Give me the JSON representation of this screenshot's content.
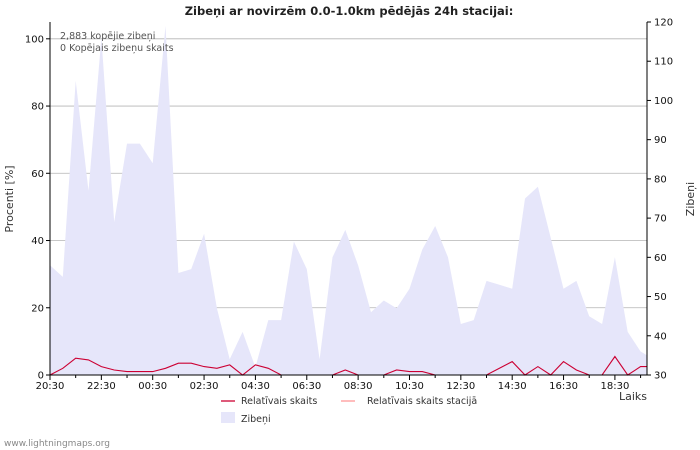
{
  "chart_data": {
    "type": "area",
    "title": "Zibeņi ar novirzēm 0.0-1.0km pēdējās 24h stacijai:",
    "ylabel_left": "Procenti   [%]",
    "ylabel_right": "Zibeņi",
    "xlabel": "Laiks",
    "ylim_left": [
      0,
      105
    ],
    "ylim_right": [
      30,
      120
    ],
    "left_ticks": [
      0,
      20,
      40,
      60,
      80,
      100
    ],
    "right_ticks": [
      30,
      40,
      50,
      60,
      70,
      80,
      90,
      100,
      110,
      120
    ],
    "x_tick_labels": [
      "20:30",
      "22:30",
      "00:30",
      "02:30",
      "04:30",
      "06:30",
      "08:30",
      "10:30",
      "12:30",
      "14:30",
      "16:30",
      "18:30"
    ],
    "x_tick_hours": [
      0,
      2,
      4,
      6,
      8,
      10,
      12,
      14,
      16,
      18,
      20,
      22
    ],
    "x_range_hours": [
      0,
      23.25
    ],
    "annotations": [
      "2,883 kopējie zibeņi",
      "0 Kopējais zibeņu skaits"
    ],
    "series": [
      {
        "name": "Zibeņi",
        "axis": "right",
        "color": "#e6e6fa",
        "x": [
          0,
          0.5,
          1,
          1.5,
          2,
          2.5,
          3,
          3.5,
          4,
          4.5,
          5,
          5.5,
          6,
          6.5,
          7,
          7.5,
          8,
          8.5,
          9,
          9.5,
          10,
          10.5,
          11,
          11.5,
          12,
          12.5,
          13,
          13.5,
          14,
          14.5,
          15,
          15.5,
          16,
          16.5,
          17,
          17.5,
          18,
          18.5,
          19,
          19.5,
          20,
          20.5,
          21,
          21.5,
          22,
          22.5,
          23,
          23.25
        ],
        "values": [
          58,
          55,
          105,
          77,
          116,
          69,
          89,
          89,
          84,
          119,
          56,
          57,
          66,
          47,
          34,
          41,
          32,
          44,
          44,
          64,
          57,
          34,
          60,
          67,
          58,
          46,
          49,
          47,
          52,
          62,
          68,
          60,
          43,
          44,
          54,
          53,
          52,
          75,
          78,
          65,
          52,
          54,
          45,
          43,
          60,
          41,
          36,
          35
        ]
      },
      {
        "name": "Relatīvais skaits",
        "axis": "left",
        "color": "#cc0033",
        "x": [
          0,
          0.5,
          1,
          1.5,
          2,
          2.5,
          3,
          3.5,
          4,
          4.5,
          5,
          5.5,
          6,
          6.5,
          7,
          7.5,
          8,
          8.5,
          9,
          9.5,
          10,
          10.5,
          11,
          11.5,
          12,
          12.5,
          13,
          13.5,
          14,
          14.5,
          15,
          15.5,
          16,
          16.5,
          17,
          17.5,
          18,
          18.5,
          19,
          19.5,
          20,
          20.5,
          21,
          21.5,
          22,
          22.5,
          23,
          23.25
        ],
        "values": [
          0,
          2,
          5,
          4.5,
          2.5,
          1.5,
          1,
          1,
          1,
          2,
          3.5,
          3.5,
          2.5,
          2,
          3,
          0,
          3,
          2,
          0,
          0,
          0,
          0,
          0,
          1.5,
          0,
          0,
          0,
          1.5,
          1,
          1,
          0,
          0,
          0,
          0,
          0,
          2,
          4,
          0,
          2.5,
          0,
          4,
          1.5,
          0,
          0,
          5.5,
          0,
          2.5,
          2.5
        ]
      },
      {
        "name": "Relatīvais skaits stacijā",
        "axis": "left",
        "color": "#ff9999",
        "x": [
          0,
          23.25
        ],
        "values": [
          0,
          0
        ]
      }
    ],
    "legend": [
      "Relatīvais skaits",
      "Relatīvais skaits stacijā",
      "Zibeņi"
    ],
    "grid": true
  },
  "footer": "www.lightningmaps.org"
}
